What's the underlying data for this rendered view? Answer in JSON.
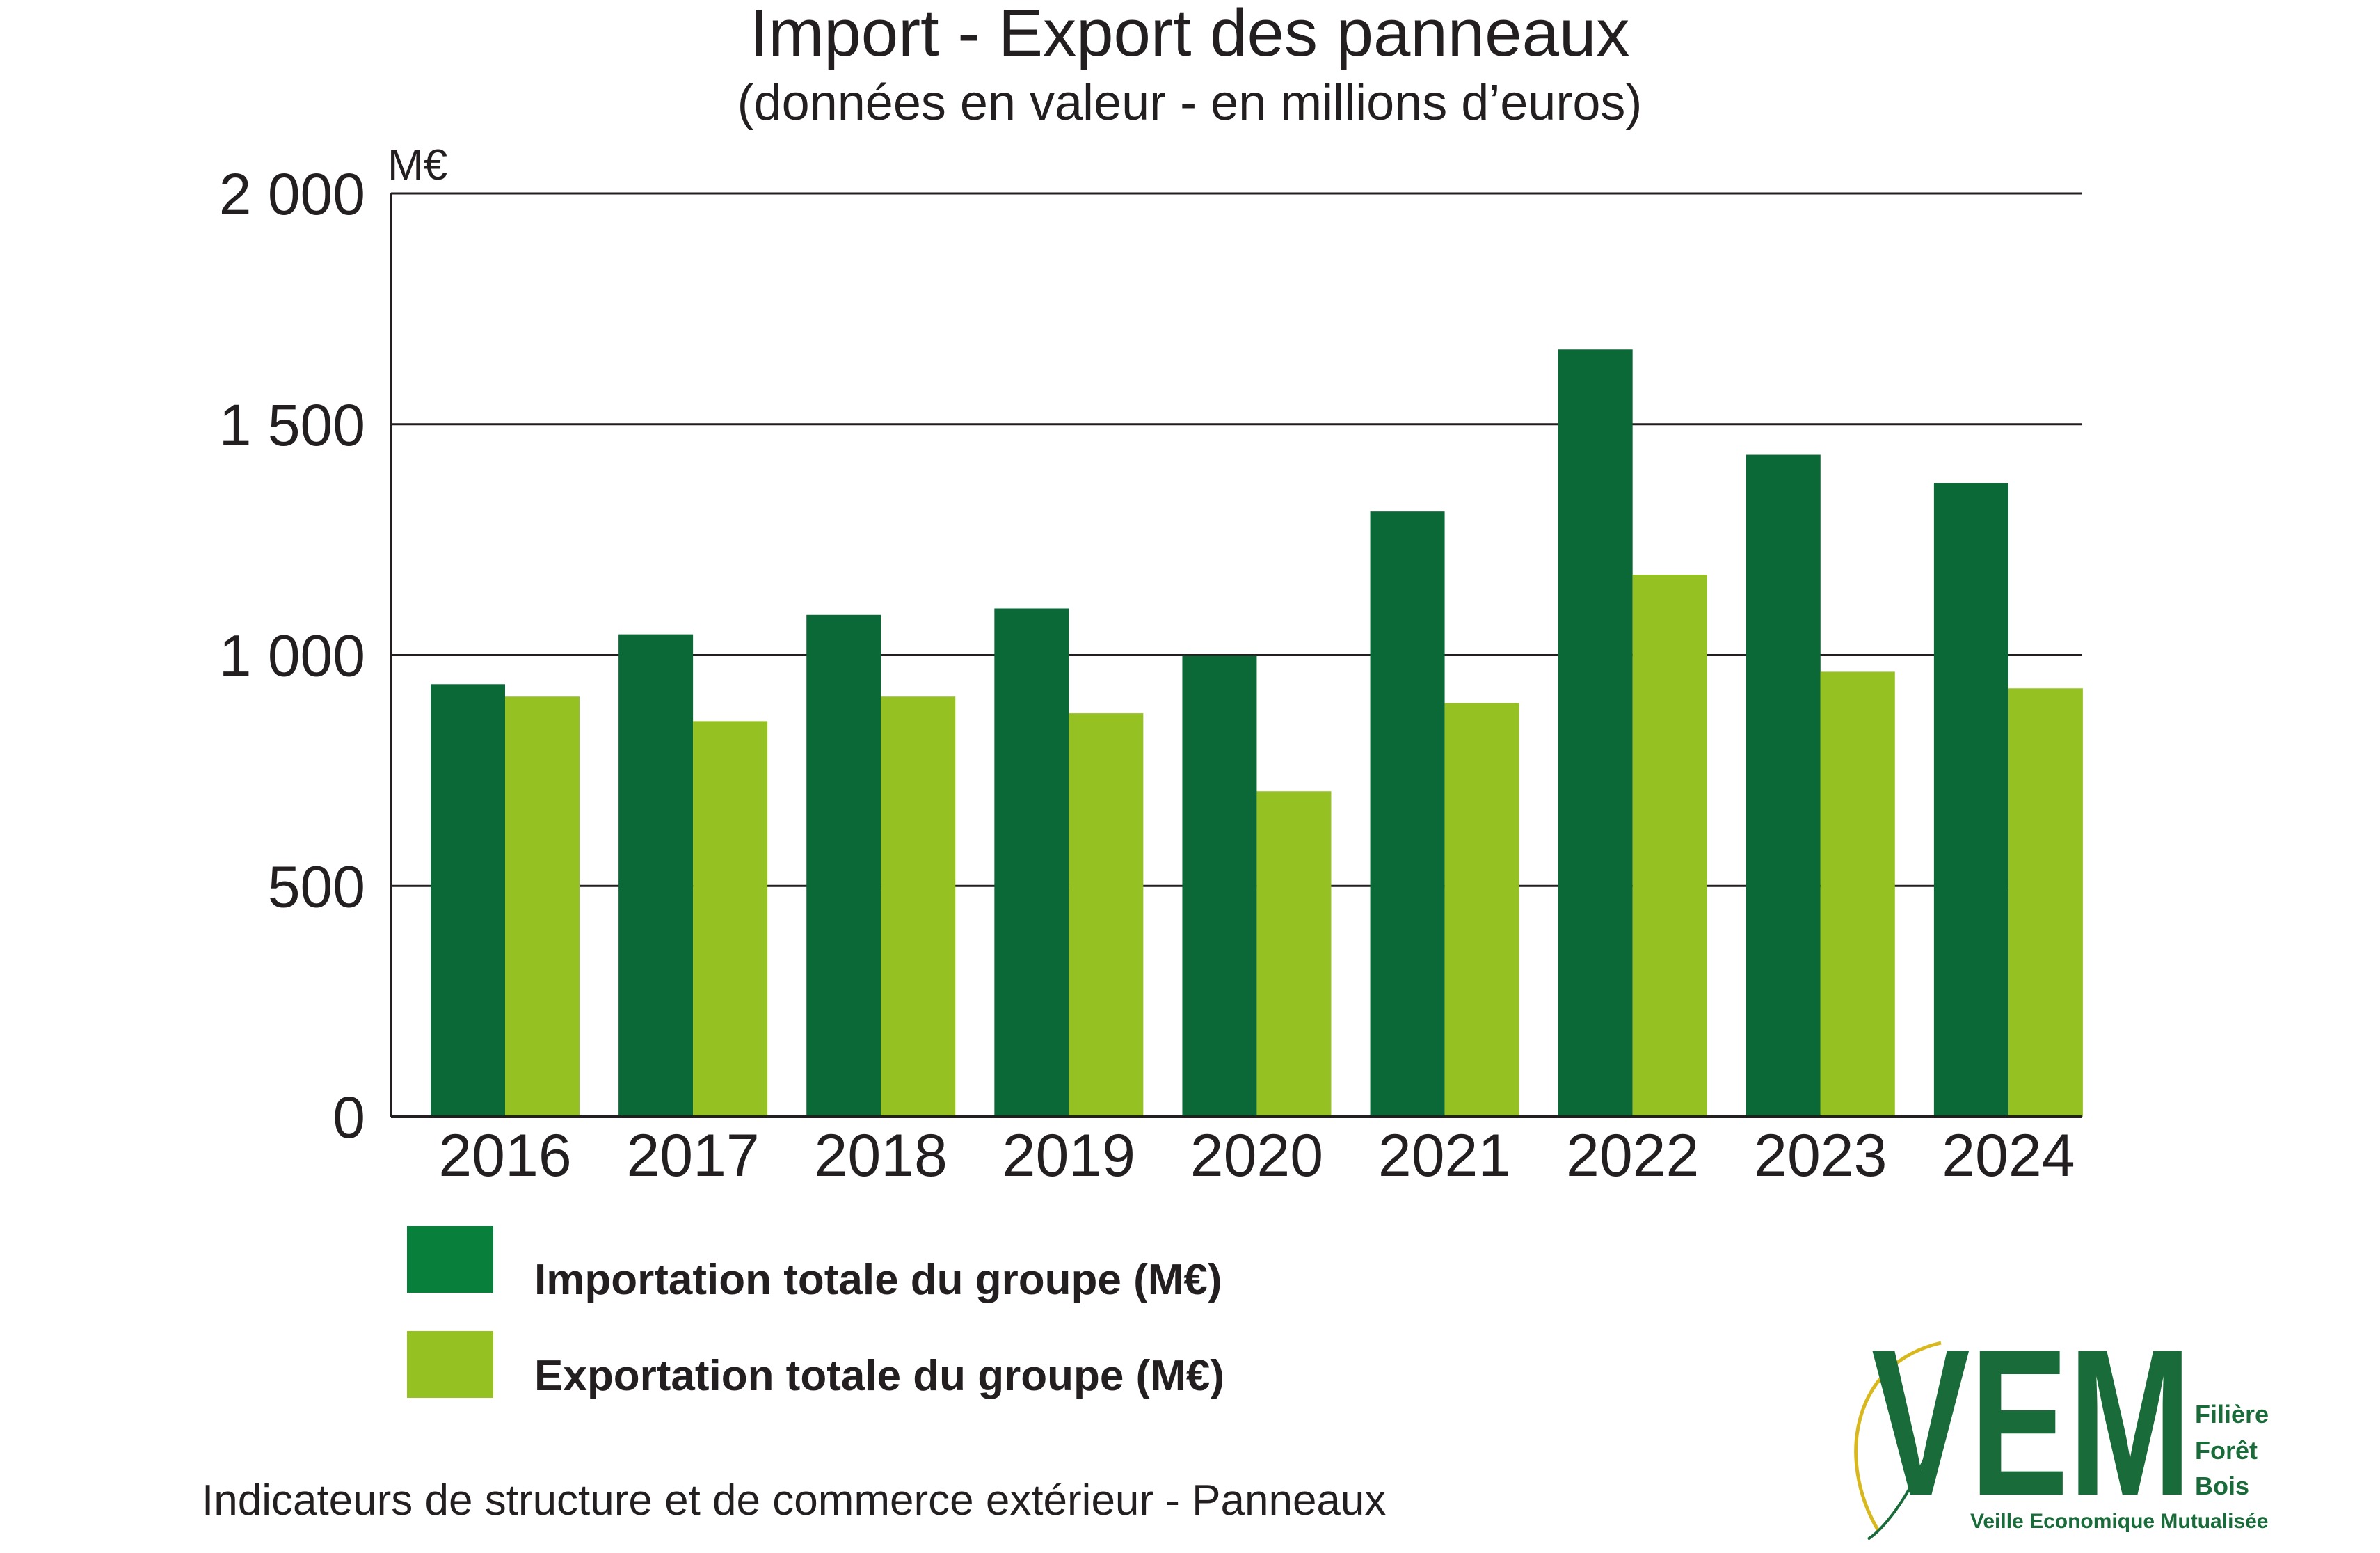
{
  "chart_data": {
    "type": "bar",
    "title": "Import - Export des panneaux",
    "subtitle": "(données en valeur - en millions d’euros)",
    "ylabel": "M€",
    "xlabel": "",
    "categories": [
      "2016",
      "2017",
      "2018",
      "2019",
      "2020",
      "2021",
      "2022",
      "2023",
      "2024"
    ],
    "series": [
      {
        "name": "Importation totale du groupe (M€)",
        "color": "#0b6837",
        "values": [
          937,
          1045,
          1087,
          1101,
          998,
          1311,
          1662,
          1434,
          1373
        ]
      },
      {
        "name": "Exportation totale du groupe (M€)",
        "color": "#95c123",
        "values": [
          910,
          857,
          910,
          874,
          705,
          896,
          1174,
          964,
          928
        ]
      }
    ],
    "ylim": [
      0,
      2000
    ],
    "yticks": [
      0,
      500,
      1000,
      1500,
      2000
    ],
    "ytick_labels": [
      "0",
      "500",
      "1 000",
      "1 500",
      "2 000"
    ],
    "grid": true,
    "legend": "bottom-left"
  },
  "legend": {
    "import_color": "#087f3a",
    "export_color": "#95c123"
  },
  "footer": "Indicateurs de structure et de commerce extérieur - Panneaux",
  "logo": {
    "letters": "VEM",
    "lines": [
      "Filière",
      "Forêt",
      "Bois"
    ],
    "tagline": "Veille Economique Mutualisée",
    "color": "#1a6b3a",
    "accent": "#d9b81e"
  }
}
